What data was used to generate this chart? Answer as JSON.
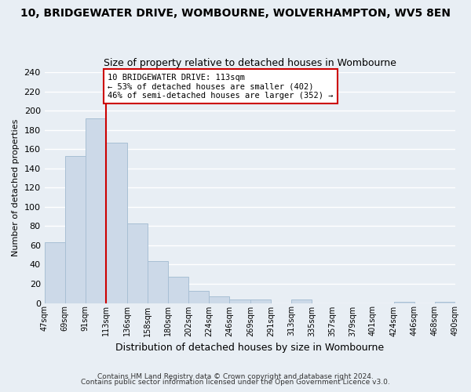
{
  "title": "10, BRIDGEWATER DRIVE, WOMBOURNE, WOLVERHAMPTON, WV5 8EN",
  "subtitle": "Size of property relative to detached houses in Wombourne",
  "xlabel": "Distribution of detached houses by size in Wombourne",
  "ylabel": "Number of detached properties",
  "bar_color": "#ccd9e8",
  "bar_edge_color": "#a8bfd4",
  "bin_edges": [
    47,
    69,
    91,
    113,
    136,
    158,
    180,
    202,
    224,
    246,
    269,
    291,
    313,
    335,
    357,
    379,
    401,
    424,
    446,
    468,
    490
  ],
  "bar_heights": [
    63,
    153,
    192,
    167,
    83,
    44,
    27,
    13,
    7,
    4,
    4,
    0,
    4,
    0,
    0,
    0,
    0,
    1,
    0,
    1
  ],
  "tick_labels": [
    "47sqm",
    "69sqm",
    "91sqm",
    "113sqm",
    "136sqm",
    "158sqm",
    "180sqm",
    "202sqm",
    "224sqm",
    "246sqm",
    "269sqm",
    "291sqm",
    "313sqm",
    "335sqm",
    "357sqm",
    "379sqm",
    "401sqm",
    "424sqm",
    "446sqm",
    "468sqm",
    "490sqm"
  ],
  "vline_x": 113,
  "vline_color": "#cc0000",
  "annotation_line1": "10 BRIDGEWATER DRIVE: 113sqm",
  "annotation_line2": "← 53% of detached houses are smaller (402)",
  "annotation_line3": "46% of semi-detached houses are larger (352) →",
  "annotation_box_edge": "#cc0000",
  "annotation_box_face": "#ffffff",
  "ylim": [
    0,
    240
  ],
  "yticks": [
    0,
    20,
    40,
    60,
    80,
    100,
    120,
    140,
    160,
    180,
    200,
    220,
    240
  ],
  "footer1": "Contains HM Land Registry data © Crown copyright and database right 2024.",
  "footer2": "Contains public sector information licensed under the Open Government Licence v3.0.",
  "bg_color": "#e8eef4",
  "plot_bg_color": "#e8eef4",
  "grid_color": "#ffffff",
  "title_fontsize": 10,
  "subtitle_fontsize": 9
}
